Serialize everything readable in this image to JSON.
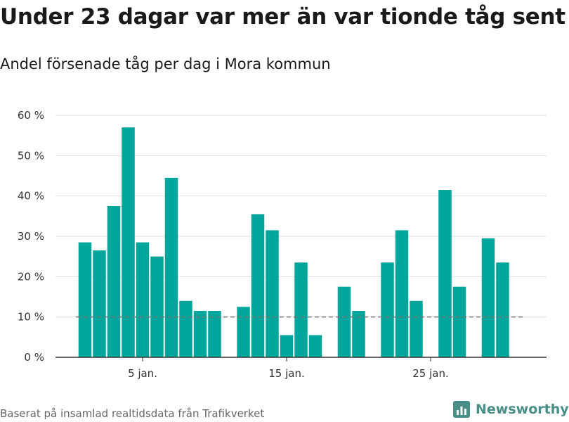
{
  "title": "Under 23 dagar var mer än var tionde tåg sent",
  "subtitle": "Andel försenade tåg per dag i Mora kommun",
  "source": "Baserat på insamlad realtidsdata från Trafikverket",
  "brand": "Newsworthy",
  "colors": {
    "bar": "#00a69c",
    "reference": "#777777",
    "grid": "#dddddd",
    "brand": "#4a8f87"
  },
  "chart_data": {
    "type": "bar",
    "x": [
      1,
      2,
      3,
      4,
      5,
      6,
      7,
      8,
      9,
      10,
      11,
      12,
      13,
      14,
      15,
      16,
      17,
      18,
      19,
      20,
      21,
      22,
      23,
      24,
      25,
      26,
      27,
      28,
      29,
      30,
      31
    ],
    "values": [
      28.5,
      26.5,
      37.5,
      57,
      28.5,
      25,
      44.5,
      14,
      11.5,
      11.5,
      null,
      12.5,
      35.5,
      31.5,
      5.5,
      23.5,
      5.5,
      null,
      17.5,
      11.5,
      null,
      23.5,
      31.5,
      14,
      null,
      41.5,
      17.5,
      null,
      29.5,
      23.5,
      null
    ],
    "unit": "%",
    "ylim": [
      0,
      60
    ],
    "yticks": [
      {
        "value": 0,
        "label": "0 %"
      },
      {
        "value": 10,
        "label": "10 %"
      },
      {
        "value": 20,
        "label": "20 %"
      },
      {
        "value": 30,
        "label": "30 %"
      },
      {
        "value": 40,
        "label": "40 %"
      },
      {
        "value": 50,
        "label": "50 %"
      },
      {
        "value": 60,
        "label": "60 %"
      }
    ],
    "xticks": [
      {
        "value": 5,
        "label": "5 jan."
      },
      {
        "value": 15,
        "label": "15 jan."
      },
      {
        "value": 25,
        "label": "25 jan."
      }
    ],
    "reference_line": 10,
    "grid": true
  }
}
